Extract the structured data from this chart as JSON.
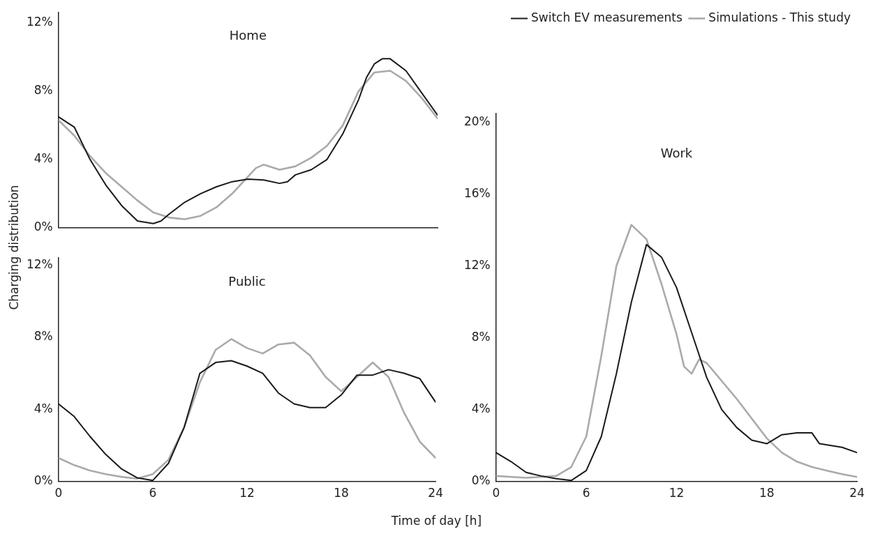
{
  "chart_data": [
    {
      "type": "line",
      "title": "Home",
      "ylabel": "Charging distribution",
      "xlim": [
        0,
        24
      ],
      "xticks": [
        0,
        6,
        12,
        18,
        24
      ],
      "ylim": [
        0,
        12.6
      ],
      "yticks": [
        {
          "value": 0,
          "label": "0%"
        },
        {
          "value": 4,
          "label": "4%"
        },
        {
          "value": 8,
          "label": "8%"
        },
        {
          "value": 12,
          "label": "12%"
        }
      ],
      "grid": false,
      "legend": false,
      "tick_labels": "y",
      "marker": "none",
      "line_style": "solid",
      "series": [
        {
          "color": "#1a1a1a",
          "x": [
            0,
            1,
            2,
            3,
            4,
            5,
            6,
            6.5,
            7,
            8,
            9,
            10,
            11,
            12,
            13,
            14,
            14.5,
            15,
            16,
            17,
            18,
            19,
            19.5,
            20,
            20.5,
            21,
            22,
            23,
            24
          ],
          "values": [
            6.5,
            5.9,
            4.0,
            2.5,
            1.3,
            0.4,
            0.25,
            0.4,
            0.8,
            1.5,
            2.0,
            2.4,
            2.7,
            2.85,
            2.8,
            2.6,
            2.7,
            3.1,
            3.4,
            4.0,
            5.5,
            7.5,
            8.8,
            9.6,
            9.9,
            9.9,
            9.2,
            7.9,
            6.6
          ]
        },
        {
          "color": "#aaaaaa",
          "x": [
            0,
            1,
            2,
            3,
            4,
            5,
            6,
            7,
            8,
            9,
            10,
            11,
            12,
            12.5,
            13,
            14,
            15,
            16,
            17,
            18,
            19,
            20,
            21,
            22,
            23,
            24
          ],
          "values": [
            6.3,
            5.4,
            4.2,
            3.2,
            2.4,
            1.6,
            0.9,
            0.6,
            0.5,
            0.7,
            1.2,
            2.0,
            3.0,
            3.5,
            3.7,
            3.4,
            3.6,
            4.1,
            4.8,
            6.0,
            8.0,
            9.1,
            9.2,
            8.6,
            7.6,
            6.4
          ]
        }
      ]
    },
    {
      "type": "line",
      "title": "Public",
      "xlabel": "Time of day [h]",
      "xlim": [
        0,
        24
      ],
      "xticks": [
        0,
        6,
        12,
        18,
        24
      ],
      "ylim": [
        0,
        12.4
      ],
      "yticks": [
        {
          "value": 0,
          "label": "0%"
        },
        {
          "value": 4,
          "label": "4%"
        },
        {
          "value": 8,
          "label": "8%"
        },
        {
          "value": 12,
          "label": "12%"
        }
      ],
      "grid": false,
      "legend": false,
      "marker": "none",
      "line_style": "solid",
      "series": [
        {
          "color": "#1a1a1a",
          "x": [
            0,
            1,
            2,
            3,
            4,
            5,
            6,
            7,
            8,
            9,
            10,
            11,
            12,
            13,
            14,
            15,
            16,
            17,
            18,
            19,
            20,
            21,
            22,
            23,
            24
          ],
          "values": [
            4.3,
            3.6,
            2.5,
            1.5,
            0.7,
            0.2,
            0.05,
            1.0,
            3.0,
            6.0,
            6.6,
            6.7,
            6.4,
            6.0,
            4.9,
            4.3,
            4.1,
            4.1,
            4.8,
            5.9,
            5.9,
            6.2,
            6.0,
            5.7,
            4.4
          ]
        },
        {
          "color": "#aaaaaa",
          "x": [
            0,
            1,
            2,
            3,
            4,
            5,
            6,
            7,
            8,
            9,
            10,
            11,
            12,
            13,
            14,
            15,
            16,
            17,
            18,
            19,
            20,
            21,
            22,
            23,
            24
          ],
          "values": [
            1.3,
            0.9,
            0.6,
            0.4,
            0.25,
            0.15,
            0.4,
            1.2,
            3.0,
            5.5,
            7.3,
            7.9,
            7.4,
            7.1,
            7.6,
            7.7,
            7.0,
            5.8,
            5.0,
            5.8,
            6.6,
            5.8,
            3.8,
            2.2,
            1.3
          ]
        }
      ]
    },
    {
      "type": "line",
      "title": "Work",
      "xlim": [
        0,
        24
      ],
      "xticks": [
        0,
        6,
        12,
        18,
        24
      ],
      "ylim": [
        0,
        20.5
      ],
      "yticks": [
        {
          "value": 0,
          "label": "0%"
        },
        {
          "value": 4,
          "label": "4%"
        },
        {
          "value": 8,
          "label": "8%"
        },
        {
          "value": 12,
          "label": "12%"
        },
        {
          "value": 16,
          "label": "16%"
        },
        {
          "value": 20,
          "label": "20%"
        }
      ],
      "grid": false,
      "legend": "top right",
      "marker": "none",
      "line_style": "solid",
      "series": [
        {
          "name": "Switch EV measurements",
          "color": "#1a1a1a",
          "x": [
            0,
            1,
            2,
            3,
            4,
            5,
            6,
            7,
            8,
            9,
            10,
            11,
            12,
            13,
            14,
            15,
            16,
            17,
            18,
            19,
            20,
            21,
            21.5,
            23,
            24
          ],
          "values": [
            1.6,
            1.1,
            0.5,
            0.3,
            0.15,
            0.05,
            0.6,
            2.5,
            6.0,
            10.0,
            13.2,
            12.5,
            10.8,
            8.3,
            5.8,
            4.0,
            3.0,
            2.3,
            2.1,
            2.6,
            2.7,
            2.7,
            2.1,
            1.9,
            1.6
          ]
        },
        {
          "name": "Simulations - This study",
          "color": "#aaaaaa",
          "x": [
            0,
            2,
            4,
            5,
            6,
            7,
            8,
            9,
            10,
            11,
            12,
            12.5,
            13,
            13.5,
            14,
            15,
            16,
            17,
            18,
            19,
            20,
            21,
            22,
            23,
            24
          ],
          "values": [
            0.3,
            0.2,
            0.3,
            0.8,
            2.5,
            7.0,
            12.0,
            14.3,
            13.5,
            11.0,
            8.2,
            6.4,
            6.0,
            6.8,
            6.6,
            5.6,
            4.6,
            3.5,
            2.4,
            1.6,
            1.1,
            0.8,
            0.6,
            0.4,
            0.25
          ]
        }
      ]
    }
  ]
}
